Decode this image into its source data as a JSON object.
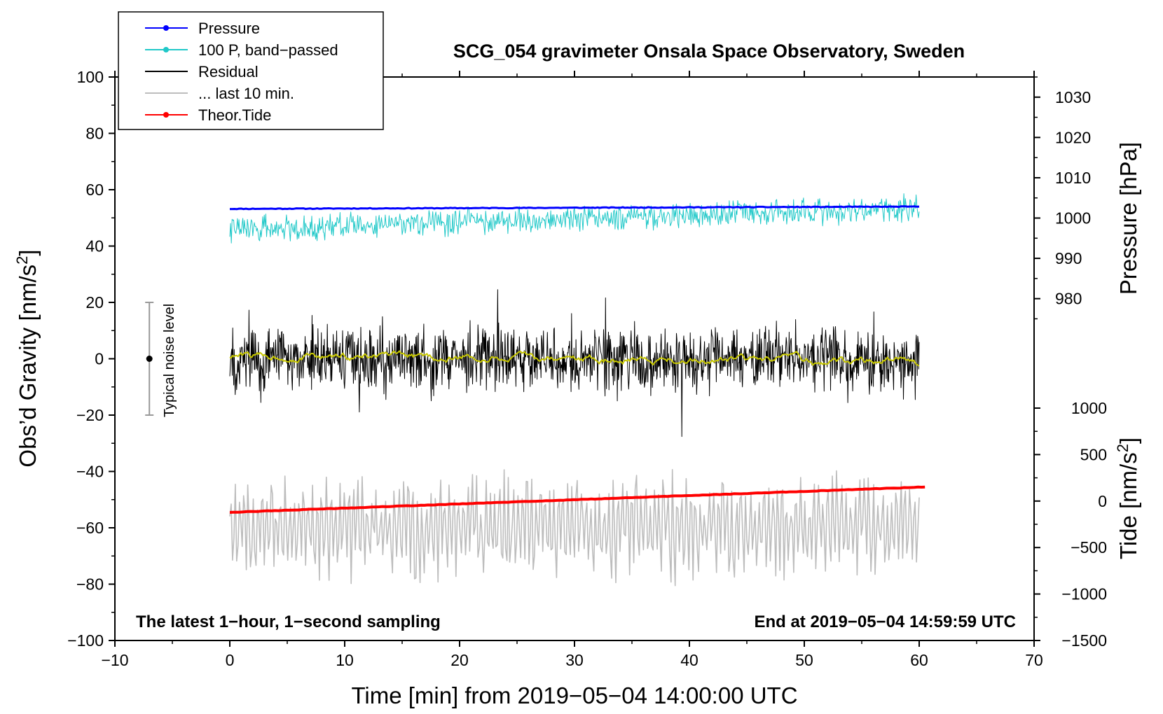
{
  "chart_data": {
    "type": "line",
    "title": "SCG_054 gravimeter Onsala Space Observatory, Sweden",
    "xlabel": "Time [min] from 2019−05−04 14:00:00 UTC",
    "ylabel_left": "Obs’d Gravity [nm/s",
    "ylabel_left_sup": "2",
    "ylabel_left_end": "]",
    "ylabel_right_pressure": "Pressure [hPa]",
    "ylabel_right_tide": "Tide [nm/s",
    "ylabel_right_tide_sup": "2",
    "ylabel_right_tide_end": "]",
    "xlim": [
      -10,
      70
    ],
    "ylim_left": [
      -100,
      100
    ],
    "xticks": [
      -10,
      0,
      10,
      20,
      30,
      40,
      50,
      60,
      70
    ],
    "xtick_labels": [
      "−10",
      "0",
      "10",
      "20",
      "30",
      "40",
      "50",
      "60",
      "70"
    ],
    "yticks_left": [
      100,
      80,
      60,
      40,
      20,
      0,
      -20,
      -40,
      -60,
      -80,
      -100
    ],
    "ytick_labels_left": [
      "100",
      "80",
      "60",
      "40",
      "20",
      "0",
      "−20",
      "−40",
      "−60",
      "−80",
      "−100"
    ],
    "pressure_axis": {
      "ticks": [
        1030,
        1020,
        1010,
        1000,
        990,
        980
      ],
      "labels": [
        "1030",
        "1020",
        "1010",
        "1000",
        "990",
        "980"
      ],
      "range": [
        965,
        1035
      ]
    },
    "tide_axis": {
      "ticks": [
        1000,
        500,
        0,
        -500,
        -1000,
        -1500
      ],
      "labels": [
        "1000",
        "500",
        "0",
        "−500",
        "−1000",
        "−1500"
      ],
      "range": [
        -1500,
        1000
      ]
    },
    "legend": [
      {
        "label": "Pressure",
        "color": "#0000ff",
        "marker": true
      },
      {
        "label": "100 P, band−passed",
        "color": "#20c8c8",
        "marker": true
      },
      {
        "label": "Residual",
        "color": "#000000",
        "marker": false
      },
      {
        "label": "... last 10 min.",
        "color": "#bdbdbd",
        "marker": false
      },
      {
        "label": "Theor.Tide",
        "color": "#ff0000",
        "marker": true
      }
    ],
    "series": [
      {
        "name": "Pressure",
        "color": "#0000ff",
        "x_range": [
          0,
          60
        ],
        "start": 53.2,
        "end": 54.0,
        "amplitude": 0.25,
        "seed": 11
      },
      {
        "name": "100 P, band-passed",
        "color": "#20c8c8",
        "x_range": [
          0,
          60
        ],
        "start": 46.0,
        "end": 53.5,
        "amplitude": 4.0,
        "seed": 22
      },
      {
        "name": "Residual",
        "color": "#000000",
        "x_range": [
          0,
          60
        ],
        "start": 0,
        "end": 0,
        "amplitude": 15,
        "seed": 33
      },
      {
        "name": "Residual smoothed",
        "color": "#c8c800",
        "x_range": [
          0,
          60
        ],
        "start": 1.0,
        "end": -1.0,
        "amplitude": 0.9,
        "seed": 44
      },
      {
        "name": "... last 10 min.",
        "color": "#bdbdbd",
        "x_range": [
          0,
          60
        ],
        "start": -60,
        "end": -60,
        "amplitude": 14,
        "seed": 55
      },
      {
        "name": "Theor.Tide",
        "color": "#ff0000",
        "x_range": [
          0,
          60.5
        ],
        "start": -54.5,
        "end": -45.5,
        "amplitude": 0.15,
        "seed": 66
      }
    ],
    "noise_level": {
      "label": "Typical noise level",
      "center": 0,
      "top": 20,
      "bottom": -20,
      "x": -7
    }
  },
  "annotations": {
    "left": "The latest 1−hour, 1−second sampling",
    "right": "End at 2019−05−04 14:59:59 UTC"
  }
}
